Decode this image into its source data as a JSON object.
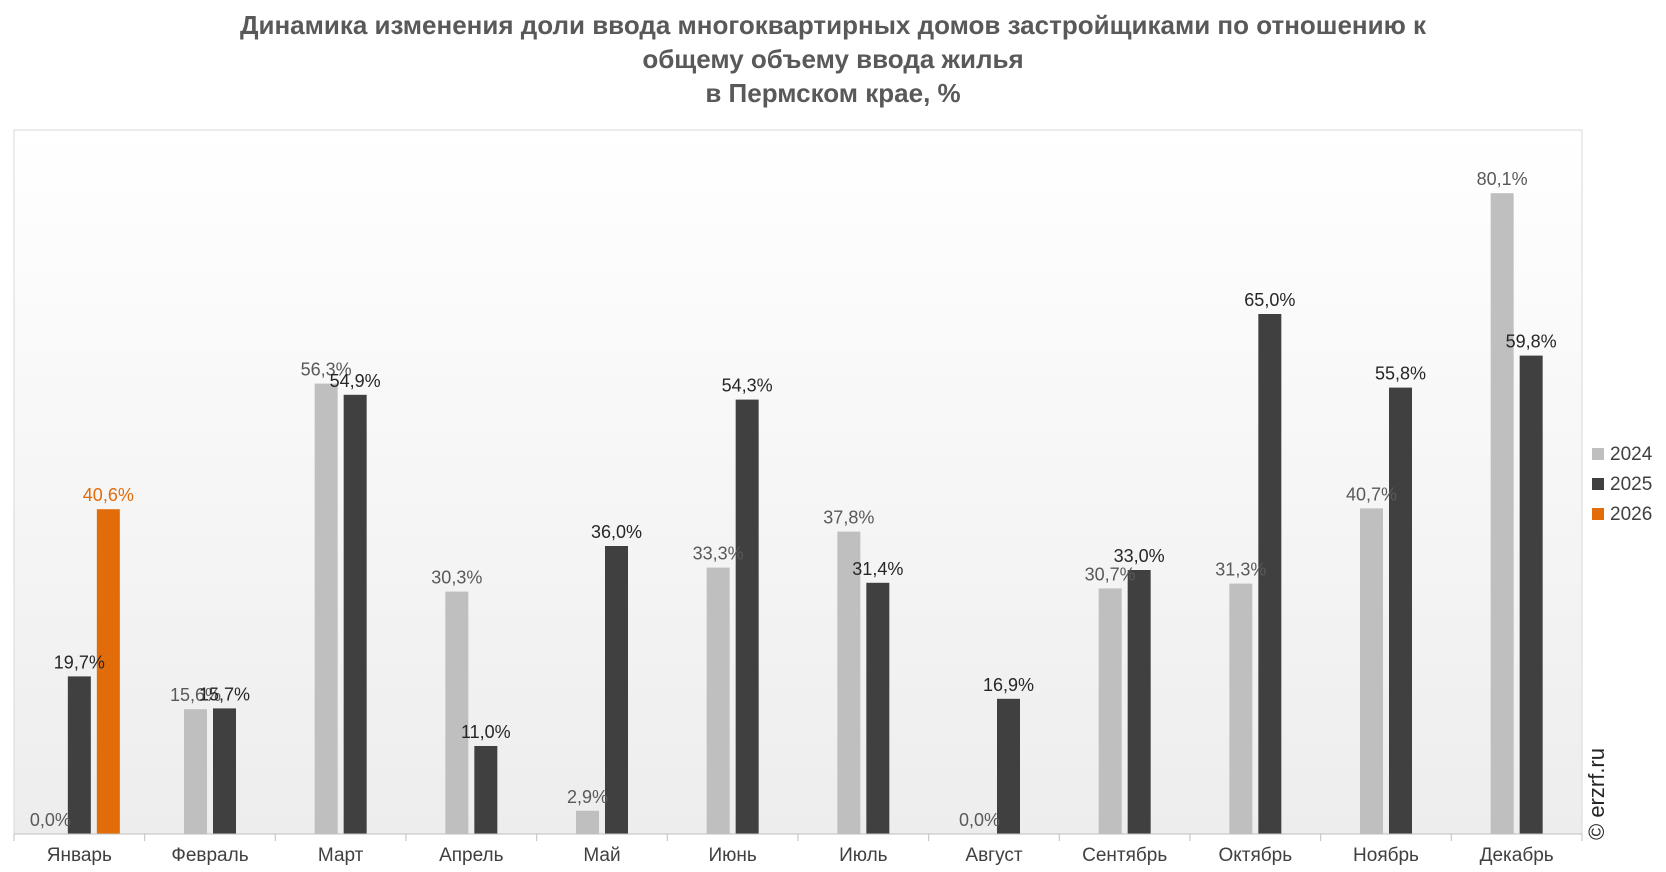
{
  "chart_data": {
    "type": "bar",
    "title_lines": [
      "Динамика изменения доли ввода многоквартирных домов застройщиками по отношению к",
      "общему объему ввода жилья",
      "в Пермском крае, %"
    ],
    "categories": [
      "Январь",
      "Февраль",
      "Март",
      "Апрель",
      "Май",
      "Июнь",
      "Июль",
      "Август",
      "Сентябрь",
      "Октябрь",
      "Ноябрь",
      "Декабрь"
    ],
    "series": [
      {
        "name": "2024",
        "color": "#bfbfbf",
        "label_color": "#595959",
        "values": [
          0.0,
          15.6,
          56.3,
          30.3,
          2.9,
          33.3,
          37.8,
          0.0,
          30.7,
          31.3,
          40.7,
          80.1
        ],
        "labels": [
          "0,0%",
          "15,6%",
          "56,3%",
          "30,3%",
          "2,9%",
          "33,3%",
          "37,8%",
          "0,0%",
          "30,7%",
          "31,3%",
          "40,7%",
          "80,1%"
        ]
      },
      {
        "name": "2025",
        "color": "#404040",
        "label_color": "#262626",
        "values": [
          19.7,
          15.7,
          54.9,
          11.0,
          36.0,
          54.3,
          31.4,
          16.9,
          33.0,
          65.0,
          55.8,
          59.8
        ],
        "labels": [
          "19,7%",
          "15,7%",
          "54,9%",
          "11,0%",
          "36,0%",
          "54,3%",
          "31,4%",
          "16,9%",
          "33,0%",
          "65,0%",
          "55,8%",
          "59,8%"
        ]
      },
      {
        "name": "2026",
        "color": "#e26b0a",
        "label_color": "#e26b0a",
        "values": [
          40.6,
          null,
          null,
          null,
          null,
          null,
          null,
          null,
          null,
          null,
          null,
          null
        ],
        "labels": [
          "40,6%",
          "",
          "",
          "",
          "",
          "",
          "",
          "",
          "",
          "",
          "",
          ""
        ]
      }
    ],
    "legend_position": "right",
    "ylim": [
      0,
      88
    ],
    "grid": false
  },
  "watermark": "© erzrf.ru"
}
